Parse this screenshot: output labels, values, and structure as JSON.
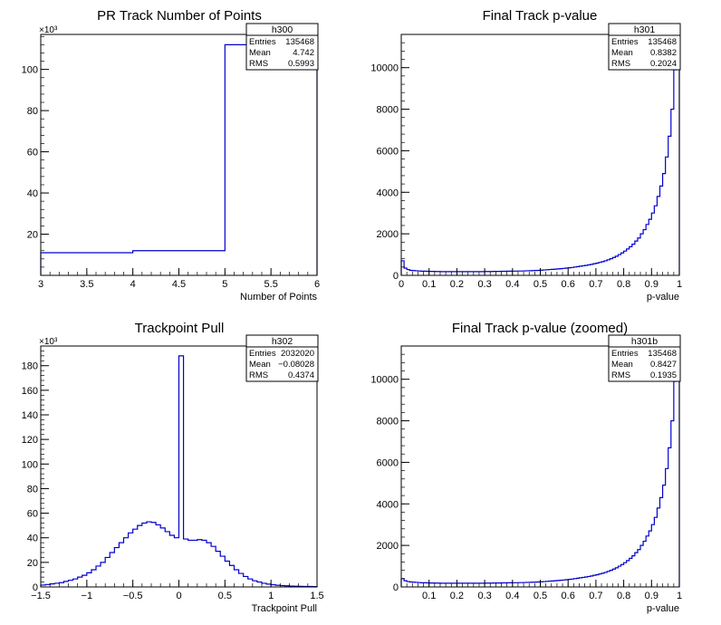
{
  "chart_data": [
    {
      "id": "h300",
      "type": "histogram",
      "title": "PR Track Number of Points",
      "xlabel": "Number of Points",
      "ylabel": "",
      "y_exponent_label": "×10³",
      "xlim": [
        3,
        6
      ],
      "ylim": [
        0,
        117000
      ],
      "xticks": [
        3,
        3.5,
        4,
        4.5,
        5,
        5.5,
        6
      ],
      "xtick_labels": [
        "3",
        "3.5",
        "4",
        "4.5",
        "5",
        "5.5",
        "6"
      ],
      "yticks": [
        20000,
        40000,
        60000,
        80000,
        100000
      ],
      "ytick_labels": [
        "20",
        "40",
        "60",
        "80",
        "100"
      ],
      "bins": [
        [
          3,
          4,
          11000
        ],
        [
          4,
          5,
          12000
        ],
        [
          5,
          6,
          112000
        ]
      ],
      "stats": {
        "name": "h300",
        "rows": [
          [
            "Entries",
            "135468"
          ],
          [
            "Mean",
            "4.742"
          ],
          [
            "RMS",
            "0.5993"
          ]
        ]
      }
    },
    {
      "id": "h301",
      "type": "histogram",
      "title": "Final Track p-value",
      "xlabel": "p-value",
      "ylabel": "",
      "y_exponent_label": "",
      "xlim": [
        0,
        1
      ],
      "ylim": [
        0,
        11600
      ],
      "xticks": [
        0,
        0.1,
        0.2,
        0.3,
        0.4,
        0.5,
        0.6,
        0.7,
        0.8,
        0.9,
        1
      ],
      "xtick_labels": [
        "0",
        "0.1",
        "0.2",
        "0.3",
        "0.4",
        "0.5",
        "0.6",
        "0.7",
        "0.8",
        "0.9",
        "1"
      ],
      "yticks": [
        0,
        2000,
        4000,
        6000,
        8000,
        10000
      ],
      "ytick_labels": [
        "0",
        "2000",
        "4000",
        "6000",
        "8000",
        "10000"
      ],
      "bin_width": 0.01,
      "values": [
        700,
        350,
        280,
        240,
        230,
        220,
        210,
        200,
        200,
        195,
        190,
        190,
        185,
        185,
        180,
        180,
        180,
        180,
        180,
        180,
        180,
        180,
        180,
        180,
        180,
        180,
        180,
        180,
        180,
        180,
        185,
        185,
        185,
        190,
        190,
        190,
        195,
        195,
        200,
        200,
        205,
        205,
        210,
        210,
        215,
        220,
        225,
        230,
        235,
        240,
        250,
        260,
        270,
        280,
        290,
        300,
        310,
        320,
        335,
        350,
        365,
        380,
        400,
        420,
        440,
        460,
        480,
        505,
        530,
        560,
        590,
        625,
        660,
        700,
        750,
        800,
        860,
        920,
        1000,
        1080,
        1170,
        1270,
        1380,
        1500,
        1650,
        1800,
        2000,
        2200,
        2450,
        2700,
        3000,
        3350,
        3800,
        4300,
        4900,
        5700,
        6700,
        8000,
        9900,
        11500
      ],
      "stats": {
        "name": "h301",
        "rows": [
          [
            "Entries",
            "135468"
          ],
          [
            "Mean",
            "0.8382"
          ],
          [
            "RMS",
            "0.2024"
          ]
        ]
      }
    },
    {
      "id": "h302",
      "type": "histogram",
      "title": "Trackpoint Pull",
      "xlabel": "Trackpoint Pull",
      "ylabel": "",
      "y_exponent_label": "×10³",
      "xlim": [
        -1.5,
        1.5
      ],
      "ylim": [
        0,
        196000
      ],
      "xticks": [
        -1.5,
        -1,
        -0.5,
        0,
        0.5,
        1,
        1.5
      ],
      "xtick_labels": [
        "−1.5",
        "−1",
        "−0.5",
        "0",
        "0.5",
        "1",
        "1.5"
      ],
      "yticks": [
        0,
        20000,
        40000,
        60000,
        80000,
        100000,
        120000,
        140000,
        160000,
        180000
      ],
      "ytick_labels": [
        "0",
        "20",
        "40",
        "60",
        "80",
        "100",
        "120",
        "140",
        "160",
        "180"
      ],
      "bin_width": 0.05,
      "values": [
        1500,
        2000,
        2500,
        3000,
        3500,
        4500,
        5500,
        6500,
        8000,
        9500,
        11500,
        14000,
        17000,
        20000,
        24000,
        28000,
        32000,
        36000,
        40000,
        44000,
        47000,
        50000,
        52000,
        53000,
        52500,
        50500,
        48000,
        45000,
        42000,
        40000,
        188000,
        39000,
        38000,
        38000,
        38500,
        38000,
        36000,
        33000,
        29000,
        25000,
        21000,
        17500,
        14000,
        11000,
        8500,
        6500,
        5000,
        4000,
        3000,
        2300,
        1800,
        1400,
        1100,
        900,
        700,
        600,
        500,
        400,
        350,
        300
      ],
      "stats": {
        "name": "h302",
        "rows": [
          [
            "Entries",
            "2032020"
          ],
          [
            "Mean",
            "−0.08028"
          ],
          [
            "RMS",
            "0.4374"
          ]
        ]
      }
    },
    {
      "id": "h301b",
      "type": "histogram",
      "title": "Final Track p-value (zoomed)",
      "xlabel": "p-value",
      "ylabel": "",
      "y_exponent_label": "",
      "xlim": [
        0,
        1
      ],
      "ylim": [
        0,
        11600
      ],
      "xticks": [
        0.1,
        0.2,
        0.3,
        0.4,
        0.5,
        0.6,
        0.7,
        0.8,
        0.9,
        1
      ],
      "xtick_labels": [
        "0.1",
        "0.2",
        "0.3",
        "0.4",
        "0.5",
        "0.6",
        "0.7",
        "0.8",
        "0.9",
        "1"
      ],
      "yticks": [
        0,
        2000,
        4000,
        6000,
        8000,
        10000
      ],
      "ytick_labels": [
        "0",
        "2000",
        "4000",
        "6000",
        "8000",
        "10000"
      ],
      "bin_width": 0.01,
      "values": [
        400,
        300,
        260,
        240,
        230,
        220,
        210,
        200,
        200,
        195,
        190,
        190,
        185,
        185,
        180,
        180,
        180,
        180,
        180,
        180,
        180,
        180,
        180,
        180,
        180,
        180,
        180,
        180,
        180,
        180,
        185,
        185,
        185,
        190,
        190,
        190,
        195,
        195,
        200,
        200,
        205,
        205,
        210,
        210,
        215,
        220,
        225,
        230,
        235,
        240,
        250,
        260,
        270,
        280,
        290,
        300,
        310,
        320,
        335,
        350,
        365,
        380,
        400,
        420,
        440,
        460,
        480,
        505,
        530,
        560,
        590,
        625,
        660,
        700,
        750,
        800,
        860,
        920,
        1000,
        1080,
        1170,
        1270,
        1380,
        1500,
        1650,
        1800,
        2000,
        2200,
        2450,
        2700,
        3000,
        3350,
        3800,
        4300,
        4900,
        5700,
        6700,
        8000,
        9900,
        11500
      ],
      "stats": {
        "name": "h301b",
        "rows": [
          [
            "Entries",
            "135468"
          ],
          [
            "Mean",
            "0.8427"
          ],
          [
            "RMS",
            "0.1935"
          ]
        ]
      }
    }
  ],
  "colors": {
    "line": "#0000cc",
    "axis": "#000000",
    "background": "#ffffff"
  }
}
